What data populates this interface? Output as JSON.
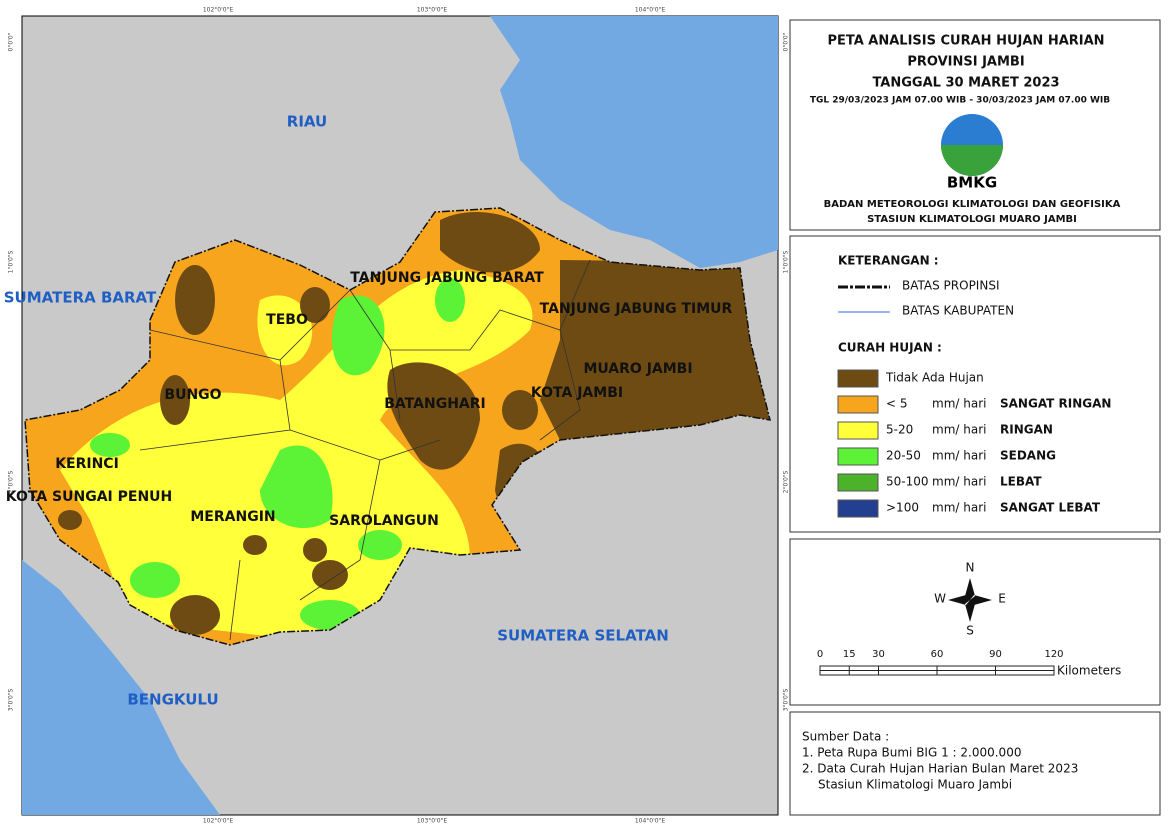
{
  "header": {
    "title_line1": "PETA ANALISIS CURAH HUJAN HARIAN",
    "title_line2": "PROVINSI JAMBI",
    "date": "TANGGAL 30 MARET 2023",
    "period": "TGL 29/03/2023 JAM 07.00 WIB - 30/03/2023 JAM 07.00 WIB",
    "logo_text": "BMKG",
    "agency": "BADAN METEOROLOGI KLIMATOLOGI DAN GEOFISIKA",
    "station": "STASIUN KLIMATOLOGI MUARO JAMBI"
  },
  "map": {
    "regions": [
      "RIAU",
      "SUMATERA BARAT",
      "TANJUNG JABUNG BARAT",
      "TEBO",
      "TANJUNG JABUNG TIMUR",
      "MUARO JAMBI",
      "BUNGO",
      "BATANGHARI",
      "KOTA JAMBI",
      "KERINCI",
      "KOTA SUNGAI PENUH",
      "MERANGIN",
      "SAROLANGUN",
      "SUMATERA SELATAN",
      "BENGKULU"
    ],
    "lon_labels": [
      "102°0'0\"E",
      "103°0'0\"E",
      "104°0'0\"E"
    ],
    "lat_labels": [
      "0°0'0\"",
      "1°0'0\"S",
      "2°0'0\"S",
      "3°0'0\"S"
    ]
  },
  "legend": {
    "title": "KETERANGAN :",
    "boundaries": [
      "BATAS PROPINSI",
      "BATAS KABUPATEN"
    ],
    "rain_title": "CURAH HUJAN :",
    "items": [
      {
        "label": "Tidak Ada Hujan",
        "color": "#6e4b12"
      },
      {
        "label": "< 5",
        "unit": "mm/ hari",
        "class": "SANGAT RINGAN",
        "color": "#f7a51c"
      },
      {
        "label": "5-20",
        "unit": "mm/ hari",
        "class": "RINGAN",
        "color": "#ffff3a"
      },
      {
        "label": "20-50",
        "unit": "mm/ hari",
        "class": "SEDANG",
        "color": "#5cf236"
      },
      {
        "label": "50-100",
        "unit": "mm/ hari",
        "class": "LEBAT",
        "color": "#4bb22a"
      },
      {
        "label": ">100",
        "unit": "mm/ hari",
        "class": "SANGAT LEBAT",
        "color": "#22408f"
      }
    ]
  },
  "compass": {
    "n": "N",
    "s": "S",
    "e": "E",
    "w": "W"
  },
  "scale": {
    "ticks": [
      0,
      15,
      30,
      60,
      90,
      120
    ],
    "unit": "Kilometers"
  },
  "source": {
    "title": "Sumber Data :",
    "lines": [
      "1. Peta Rupa Bumi BIG 1 : 2.000.000",
      "2. Data Curah Hujan Harian Bulan Maret 2023",
      "Stasiun Klimatologi Muaro Jambi"
    ]
  }
}
